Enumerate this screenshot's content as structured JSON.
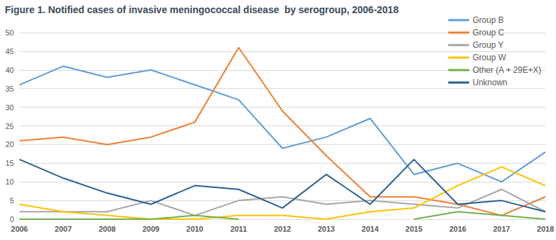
{
  "chart_data": {
    "type": "line",
    "title": "Figure 1. Notified cases of invasive meningococcal disease  by serogroup, 2006-2018",
    "categories": [
      "2006",
      "2007",
      "2008",
      "2009",
      "2010",
      "2011",
      "2012",
      "2013",
      "2014",
      "2015",
      "2016",
      "2017",
      "2018"
    ],
    "series": [
      {
        "name": "Group B",
        "color": "#5B9BD5",
        "values": [
          36,
          41,
          38,
          40,
          36,
          32,
          19,
          22,
          27,
          12,
          15,
          10,
          18
        ]
      },
      {
        "name": "Group C",
        "color": "#ED7D31",
        "values": [
          21,
          22,
          20,
          22,
          26,
          46,
          29,
          17,
          6,
          6,
          4,
          1,
          6
        ]
      },
      {
        "name": "Group Y",
        "color": "#A5A5A5",
        "values": [
          2,
          2,
          2,
          5,
          1,
          5,
          6,
          4,
          5,
          4,
          3,
          8,
          2
        ]
      },
      {
        "name": "Group W",
        "color": "#FFC000",
        "values": [
          4,
          2,
          1,
          0,
          0,
          1,
          1,
          0,
          2,
          3,
          9,
          14,
          9
        ]
      },
      {
        "name": "Other (A + 29E+X)",
        "color": "#70AD47",
        "values": [
          0,
          0,
          0,
          0,
          1,
          0,
          null,
          null,
          null,
          0,
          2,
          1,
          0
        ]
      },
      {
        "name": "Unknown",
        "color": "#255E91",
        "values": [
          16,
          11,
          7,
          4,
          9,
          8,
          3,
          12,
          4,
          16,
          4,
          5,
          2
        ]
      }
    ],
    "ylim": [
      0,
      50
    ],
    "yticks": [
      0,
      5,
      10,
      15,
      20,
      25,
      30,
      35,
      40,
      45,
      50
    ],
    "grid": true,
    "legend": "right"
  }
}
